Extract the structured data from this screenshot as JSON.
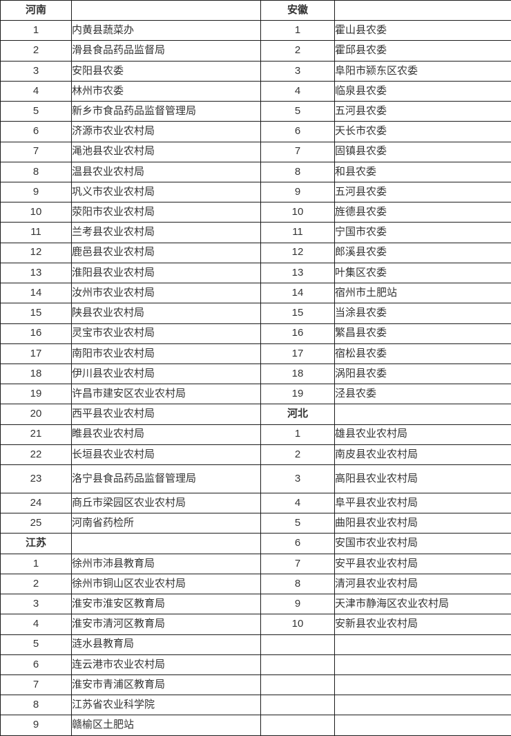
{
  "colors": {
    "text": "#333333",
    "border": "#1a1a1a",
    "background": "#ffffff"
  },
  "table": {
    "left_sections": [
      "河南",
      "江苏"
    ],
    "right_sections": [
      "安徽",
      "河北"
    ],
    "rows": [
      {
        "ln": "河南",
        "lt": "",
        "rn": "安徽",
        "rt": "",
        "lh": true,
        "rh": true
      },
      {
        "ln": "1",
        "lt": "内黄县蔬菜办",
        "rn": "1",
        "rt": "霍山县农委"
      },
      {
        "ln": "2",
        "lt": "滑县食品药品监督局",
        "rn": "2",
        "rt": "霍邱县农委"
      },
      {
        "ln": "3",
        "lt": "安阳县农委",
        "rn": "3",
        "rt": "阜阳市颍东区农委"
      },
      {
        "ln": "4",
        "lt": "林州市农委",
        "rn": "4",
        "rt": "临泉县农委"
      },
      {
        "ln": "5",
        "lt": "新乡市食品药品监督管理局",
        "rn": "5",
        "rt": "五河县农委"
      },
      {
        "ln": "6",
        "lt": "济源市农业农村局",
        "rn": "6",
        "rt": "天长市农委"
      },
      {
        "ln": "7",
        "lt": "渑池县农业农村局",
        "rn": "7",
        "rt": "固镇县农委"
      },
      {
        "ln": "8",
        "lt": "温县农业农村局",
        "rn": "8",
        "rt": "和县农委"
      },
      {
        "ln": "9",
        "lt": "巩义市农业农村局",
        "rn": "9",
        "rt": "五河县农委"
      },
      {
        "ln": "10",
        "lt": "荥阳市农业农村局",
        "rn": "10",
        "rt": "旌德县农委"
      },
      {
        "ln": "11",
        "lt": "兰考县农业农村局",
        "rn": "11",
        "rt": "宁国市农委"
      },
      {
        "ln": "12",
        "lt": "鹿邑县农业农村局",
        "rn": "12",
        "rt": "郎溪县农委"
      },
      {
        "ln": "13",
        "lt": "淮阳县农业农村局",
        "rn": "13",
        "rt": "叶集区农委"
      },
      {
        "ln": "14",
        "lt": "汝州市农业农村局",
        "rn": "14",
        "rt": "宿州市土肥站"
      },
      {
        "ln": "15",
        "lt": "陕县农业农村局",
        "rn": "15",
        "rt": "当涂县农委"
      },
      {
        "ln": "16",
        "lt": "灵宝市农业农村局",
        "rn": "16",
        "rt": "繁昌县农委"
      },
      {
        "ln": "17",
        "lt": "南阳市农业农村局",
        "rn": "17",
        "rt": "宿松县农委"
      },
      {
        "ln": "18",
        "lt": "伊川县农业农村局",
        "rn": "18",
        "rt": "涡阳县农委"
      },
      {
        "ln": "19",
        "lt": "许昌市建安区农业农村局",
        "rn": "19",
        "rt": "泾县农委"
      },
      {
        "ln": "20",
        "lt": "西平县农业农村局",
        "rn": "河北",
        "rt": "",
        "rh": true
      },
      {
        "ln": "21",
        "lt": "睢县农业农村局",
        "rn": "1",
        "rt": "雄县农业农村局"
      },
      {
        "ln": "22",
        "lt": "长垣县农业农村局",
        "rn": "2",
        "rt": "南皮县农业农村局"
      },
      {
        "ln": "23",
        "lt": "洛宁县食品药品监督管理局",
        "rn": "3",
        "rt": "高阳县农业农村局",
        "tall": true
      },
      {
        "ln": "24",
        "lt": "商丘市梁园区农业农村局",
        "rn": "4",
        "rt": "阜平县农业农村局"
      },
      {
        "ln": "25",
        "lt": "河南省药检所",
        "rn": "5",
        "rt": "曲阳县农业农村局"
      },
      {
        "ln": "江苏",
        "lt": "",
        "rn": "6",
        "rt": "安国市农业农村局",
        "lh": true
      },
      {
        "ln": "1",
        "lt": "徐州市沛县教育局",
        "rn": "7",
        "rt": "安平县农业农村局"
      },
      {
        "ln": "2",
        "lt": "徐州市铜山区农业农村局",
        "rn": "8",
        "rt": "清河县农业农村局"
      },
      {
        "ln": "3",
        "lt": "淮安市淮安区教育局",
        "rn": "9",
        "rt": "天津市静海区农业农村局"
      },
      {
        "ln": "4",
        "lt": "淮安市清河区教育局",
        "rn": "10",
        "rt": "安新县农业农村局"
      },
      {
        "ln": "5",
        "lt": "涟水县教育局",
        "rn": "",
        "rt": ""
      },
      {
        "ln": "6",
        "lt": "连云港市农业农村局",
        "rn": "",
        "rt": ""
      },
      {
        "ln": "7",
        "lt": "淮安市青浦区教育局",
        "rn": "",
        "rt": ""
      },
      {
        "ln": "8",
        "lt": "江苏省农业科学院",
        "rn": "",
        "rt": ""
      },
      {
        "ln": "9",
        "lt": "赣榆区土肥站",
        "rn": "",
        "rt": ""
      }
    ]
  }
}
